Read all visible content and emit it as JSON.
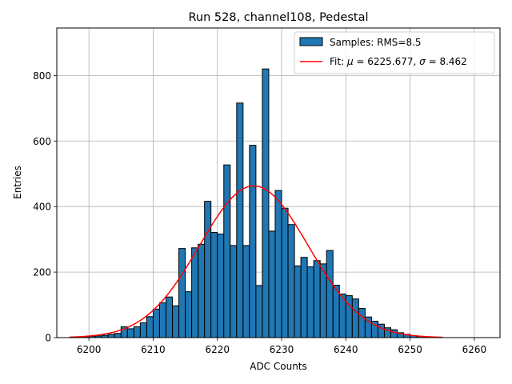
{
  "chart_data": {
    "type": "bar",
    "title": "Run 528, channel108, Pedestal",
    "xlabel": "ADC Counts",
    "ylabel": "Entries",
    "xlim": [
      6195,
      6264
    ],
    "ylim": [
      0,
      945
    ],
    "xticks": [
      6200,
      6210,
      6220,
      6230,
      6240,
      6250,
      6260
    ],
    "yticks": [
      0,
      200,
      400,
      600,
      800
    ],
    "grid": true,
    "legend_position": "top-right",
    "legend": {
      "hist_label": "Samples: RMS=8.5",
      "fit_label_prefix": "Fit: ",
      "fit_mu_symbol": "μ",
      "fit_mu_value": " = 6225.677, ",
      "fit_sigma_symbol": "σ",
      "fit_sigma_value": " = 8.462"
    },
    "histogram": {
      "name": "Samples",
      "bin_start": 6197,
      "bin_width": 1,
      "color": "#1f77b4",
      "edgecolor": "#000000",
      "values": [
        1,
        1,
        2,
        4,
        5,
        7,
        10,
        13,
        33,
        27,
        33,
        45,
        64,
        87,
        106,
        124,
        97,
        272,
        140,
        274,
        285,
        416,
        321,
        316,
        527,
        281,
        716,
        281,
        587,
        159,
        820,
        325,
        449,
        395,
        345,
        219,
        245,
        216,
        235,
        225,
        266,
        160,
        133,
        128,
        118,
        89,
        63,
        50,
        41,
        30,
        24,
        15,
        10,
        6,
        4,
        2,
        1,
        1
      ]
    },
    "fit": {
      "name": "Fit",
      "type": "gaussian",
      "mu": 6225.677,
      "sigma": 8.462,
      "peak": 463,
      "x_range": [
        6197,
        6255
      ],
      "color": "#ff0000"
    }
  }
}
